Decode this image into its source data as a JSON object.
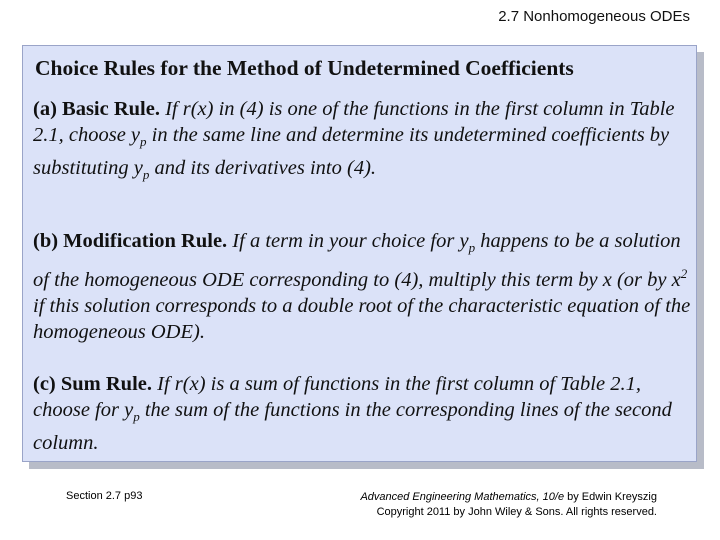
{
  "header": {
    "title": "2.7 Nonhomogeneous ODEs"
  },
  "box": {
    "title": "Choice Rules for the Method of Undetermined Coefficients",
    "rules": [
      {
        "heading": "(a) Basic Rule.",
        "parts": [
          " If r(x) in (4) is one of the functions in the first column in Table 2.1, choose y",
          "p",
          " in the same line and determine its undetermined coefficients by substituting y",
          "p",
          " and its derivatives into (4)."
        ]
      },
      {
        "heading": "(b) Modification Rule.",
        "parts": [
          " If a term in your choice for y",
          "p",
          " happens to be a solution of the homogeneous ODE corresponding to (4), multiply this term by x (or by x",
          "2",
          " if this solution corresponds to a double root of the characteristic equation of the homogeneous ODE)."
        ]
      },
      {
        "heading": "(c) Sum Rule.",
        "parts": [
          " If r(x) is a sum of functions in the first column of Table 2.1, choose for y",
          "p",
          " the sum of the functions in the corresponding lines of the second column."
        ]
      }
    ]
  },
  "footer": {
    "section": "Section 2.7  p93",
    "book_title": "Advanced Engineering Mathematics, 10/e",
    "author": " by Edwin Kreyszig",
    "copyright": "Copyright 2011 by John Wiley & Sons.  All rights reserved."
  }
}
